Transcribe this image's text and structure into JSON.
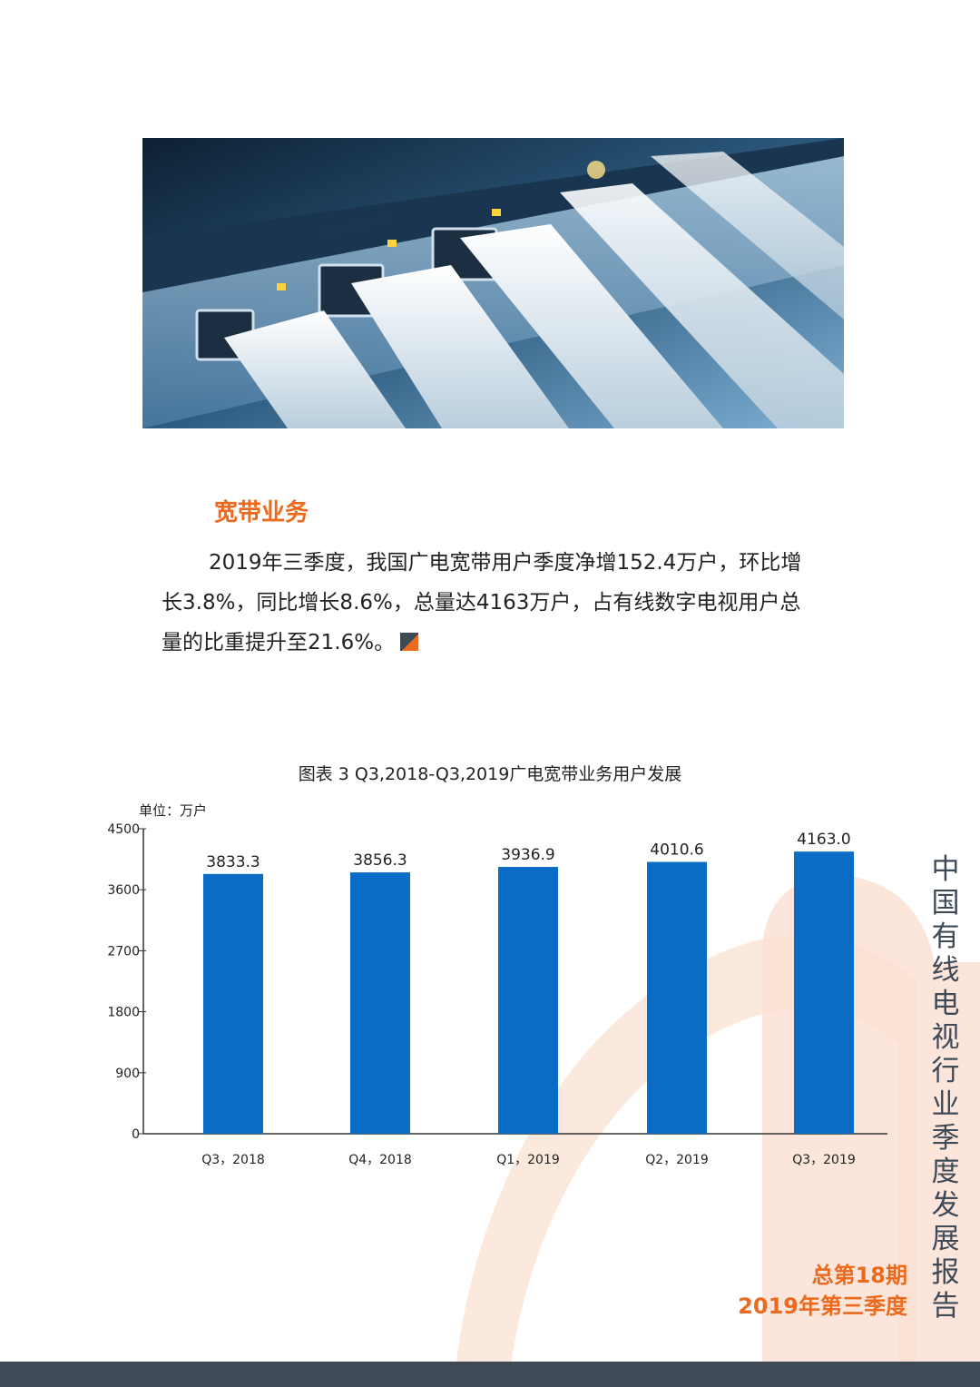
{
  "section": {
    "title": "宽带业务",
    "body": "2019年三季度，我国广电宽带用户季度净增152.4万户，环比增长3.8%，同比增长8.6%，总量达4163万户，占有线数字电视用户总量的比重提升至21.6%。"
  },
  "chart_data": {
    "type": "bar",
    "title": "图表 3 Q3,2018-Q3,2019广电宽带业务用户发展",
    "unit": "单位：万户",
    "categories": [
      "Q3，2018",
      "Q4，2018",
      "Q1，2019",
      "Q2，2019",
      "Q3，2019"
    ],
    "values": [
      3833.3,
      3856.3,
      3936.9,
      4010.6,
      4163.0
    ],
    "value_labels": [
      "3833.3",
      "3856.3",
      "3936.9",
      "4010.6",
      "4163.0"
    ],
    "yticks": [
      0,
      900,
      1800,
      2700,
      3600,
      4500
    ],
    "ylim": [
      0,
      4500
    ],
    "bar_color": "#0a6cc4"
  },
  "side": {
    "vertical_title": "中国有线电视行业季度发展报告",
    "issue_no": "总第18期",
    "quarter": "2019年第三季度"
  },
  "colors": {
    "accent": "#ec6a1d",
    "dark": "#3f4a57",
    "deco": "#fbe1d3"
  },
  "photo_icon": "network-switch-ethernet-cables-photo"
}
